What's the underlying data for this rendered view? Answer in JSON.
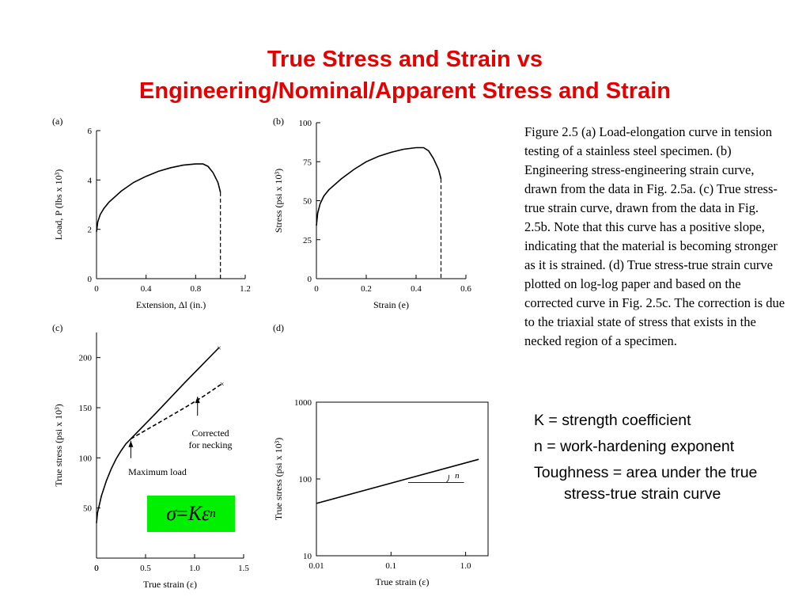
{
  "title": {
    "line1": "True Stress and Strain vs",
    "line2": "Engineering/Nominal/Apparent Stress and Strain"
  },
  "caption": "Figure 2.5  (a) Load-elongation curve in tension testing of a stainless steel specimen.  (b) Engineering stress-engineering strain curve, drawn from the data in Fig. 2.5a.  (c) True stress-true strain curve, drawn from the data in Fig. 2.5b.  Note that this curve has a positive slope, indicating that the material is becoming stronger as it is strained.  (d) True stress-true strain curve plotted on log-log paper and based on the corrected curve in Fig. 2.5c.  The correction is due to the triaxial state of stress that exists in the necked region of a specimen.",
  "definitions": [
    "K = strength coefficient",
    "n = work-hardening exponent",
    "Toughness = area under the true stress-true strain curve"
  ],
  "formula": {
    "sigma": "σ",
    "equals": " = ",
    "K": "K",
    "epsilon": "ε",
    "n": "n"
  },
  "chart_data": [
    {
      "panel": "(a)",
      "type": "line",
      "xlabel": "Extension, Δl (in.)",
      "ylabel": "Load, P (lbs x 10³)",
      "xlim": [
        0,
        1.2
      ],
      "ylim": [
        0,
        6
      ],
      "xticks": [
        "0",
        "0.4",
        "0.8",
        "1.2"
      ],
      "yticks": [
        "0",
        "2",
        "4",
        "6"
      ],
      "series": [
        {
          "x": [
            0,
            0.01,
            0.03,
            0.06,
            0.1,
            0.2,
            0.3,
            0.4,
            0.5,
            0.6,
            0.7,
            0.8,
            0.86,
            0.9,
            0.94,
            0.98,
            1.0
          ],
          "y": [
            1.9,
            2.3,
            2.6,
            2.85,
            3.1,
            3.55,
            3.9,
            4.15,
            4.35,
            4.5,
            4.6,
            4.65,
            4.65,
            4.55,
            4.3,
            3.9,
            3.5
          ]
        }
      ],
      "fracture_x": 1.0,
      "fracture_y": 3.5
    },
    {
      "panel": "(b)",
      "type": "line",
      "xlabel": "Strain (e)",
      "ylabel": "Stress (psi x 10³)",
      "xlim": [
        0,
        0.6
      ],
      "ylim": [
        0,
        100
      ],
      "xticks": [
        "0",
        "0.2",
        "0.4",
        "0.6"
      ],
      "yticks": [
        "0",
        "25",
        "50",
        "75",
        "100"
      ],
      "series": [
        {
          "x": [
            0,
            0.005,
            0.015,
            0.03,
            0.05,
            0.1,
            0.15,
            0.2,
            0.25,
            0.3,
            0.35,
            0.4,
            0.43,
            0.45,
            0.47,
            0.49,
            0.5
          ],
          "y": [
            34,
            42,
            48,
            53,
            57,
            64,
            70,
            75,
            78.5,
            81,
            83,
            84,
            84,
            82,
            77,
            70,
            64
          ]
        }
      ],
      "fracture_x": 0.5,
      "fracture_y": 64
    },
    {
      "panel": "(c)",
      "type": "line",
      "xlabel": "True strain (ε)",
      "ylabel": "True stress (psi x 10³)",
      "xlim": [
        0,
        1.5
      ],
      "ylim": [
        0,
        225
      ],
      "xticks": [
        "0",
        "0.5",
        "1.0",
        "1.5"
      ],
      "yticks": [
        "50",
        "100",
        "150",
        "200"
      ],
      "series": [
        {
          "name": "true",
          "x": [
            0,
            0.01,
            0.05,
            0.1,
            0.15,
            0.2,
            0.25,
            0.3,
            0.35,
            0.6,
            0.9,
            1.25
          ],
          "y": [
            35,
            45,
            62,
            77,
            89,
            99,
            107,
            114,
            119,
            144,
            175,
            210
          ]
        },
        {
          "name": "corrected",
          "x": [
            0.35,
            0.6,
            0.9,
            1.1,
            1.28
          ],
          "y": [
            119,
            133,
            150,
            162,
            174
          ]
        }
      ],
      "annotations": [
        "Corrected for necking",
        "Maximum load"
      ]
    },
    {
      "panel": "(d)",
      "type": "line",
      "xlabel": "True strain (ε)",
      "ylabel": "True stress (psi x 10³)",
      "xscale": "log",
      "yscale": "log",
      "xlim": [
        0.01,
        2
      ],
      "ylim": [
        10,
        1000
      ],
      "xticks": [
        "0.01",
        "0.1",
        "1.0"
      ],
      "yticks": [
        "10",
        "100",
        "1000"
      ],
      "series": [
        {
          "x": [
            0.01,
            1.5
          ],
          "y": [
            48,
            180
          ]
        }
      ],
      "annotations": [
        "n"
      ]
    }
  ]
}
